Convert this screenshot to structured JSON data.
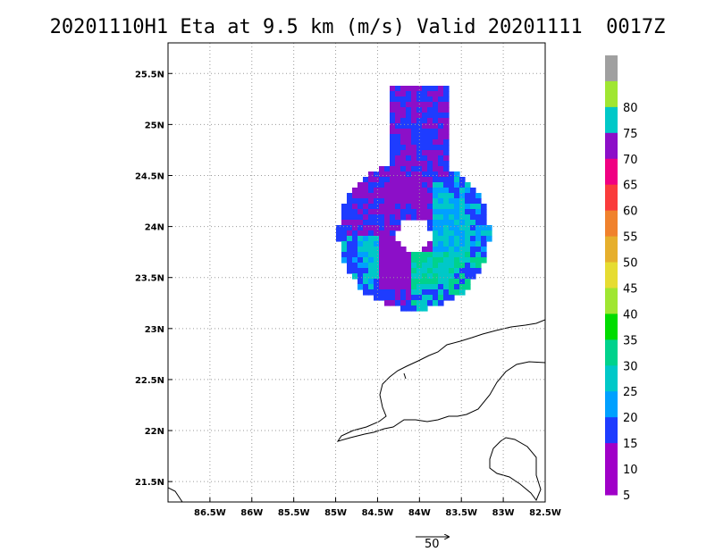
{
  "title": "20201110H1 Eta at 9.5 km (m/s) Valid 20201111  0017Z",
  "map": {
    "lon_range": [
      -87.0,
      -82.5
    ],
    "lat_range": [
      21.3,
      25.8
    ],
    "lon_ticks": [
      {
        "value": -86.5,
        "label": "86.5W"
      },
      {
        "value": -86.0,
        "label": "86W"
      },
      {
        "value": -85.5,
        "label": "85.5W"
      },
      {
        "value": -85.0,
        "label": "85W"
      },
      {
        "value": -84.5,
        "label": "84.5W"
      },
      {
        "value": -84.0,
        "label": "84W"
      },
      {
        "value": -83.5,
        "label": "83.5W"
      },
      {
        "value": -83.0,
        "label": "83W"
      },
      {
        "value": -82.5,
        "label": "82.5W"
      }
    ],
    "lat_ticks": [
      {
        "value": 21.5,
        "label": "21.5N"
      },
      {
        "value": 22.0,
        "label": "22N"
      },
      {
        "value": 22.5,
        "label": "22.5N"
      },
      {
        "value": 23.0,
        "label": "23N"
      },
      {
        "value": 23.5,
        "label": "23.5N"
      },
      {
        "value": 24.0,
        "label": "24N"
      },
      {
        "value": 24.5,
        "label": "24.5N"
      },
      {
        "value": 25.0,
        "label": "25N"
      },
      {
        "value": 25.5,
        "label": "25.5N"
      }
    ],
    "grid": "dotted",
    "storm_center": {
      "lon": -84.1,
      "lat": 23.95
    },
    "eye_radius_deg": 0.2,
    "swath_radius_deg": 0.9,
    "vector_reference": {
      "value": 50,
      "label": "50"
    }
  },
  "colorbar": {
    "levels": [
      {
        "label": "",
        "color": "#a0a0a0"
      },
      {
        "label": "80",
        "color": "#a0e632"
      },
      {
        "label": "75",
        "color": "#00c8c8"
      },
      {
        "label": "70",
        "color": "#8c0fc8"
      },
      {
        "label": "65",
        "color": "#f00082"
      },
      {
        "label": "60",
        "color": "#fa3c3c"
      },
      {
        "label": "55",
        "color": "#f0822d"
      },
      {
        "label": "50",
        "color": "#e6af2d"
      },
      {
        "label": "45",
        "color": "#e6dc32"
      },
      {
        "label": "40",
        "color": "#a0e632"
      },
      {
        "label": "35",
        "color": "#00dc00"
      },
      {
        "label": "30",
        "color": "#00d28c"
      },
      {
        "label": "25",
        "color": "#00c8c8"
      },
      {
        "label": "20",
        "color": "#00a0ff"
      },
      {
        "label": "15",
        "color": "#1e3cff"
      },
      {
        "label": "10",
        "color": "#a000c8"
      },
      {
        "label": "5",
        "color": "#a000c8"
      }
    ]
  }
}
